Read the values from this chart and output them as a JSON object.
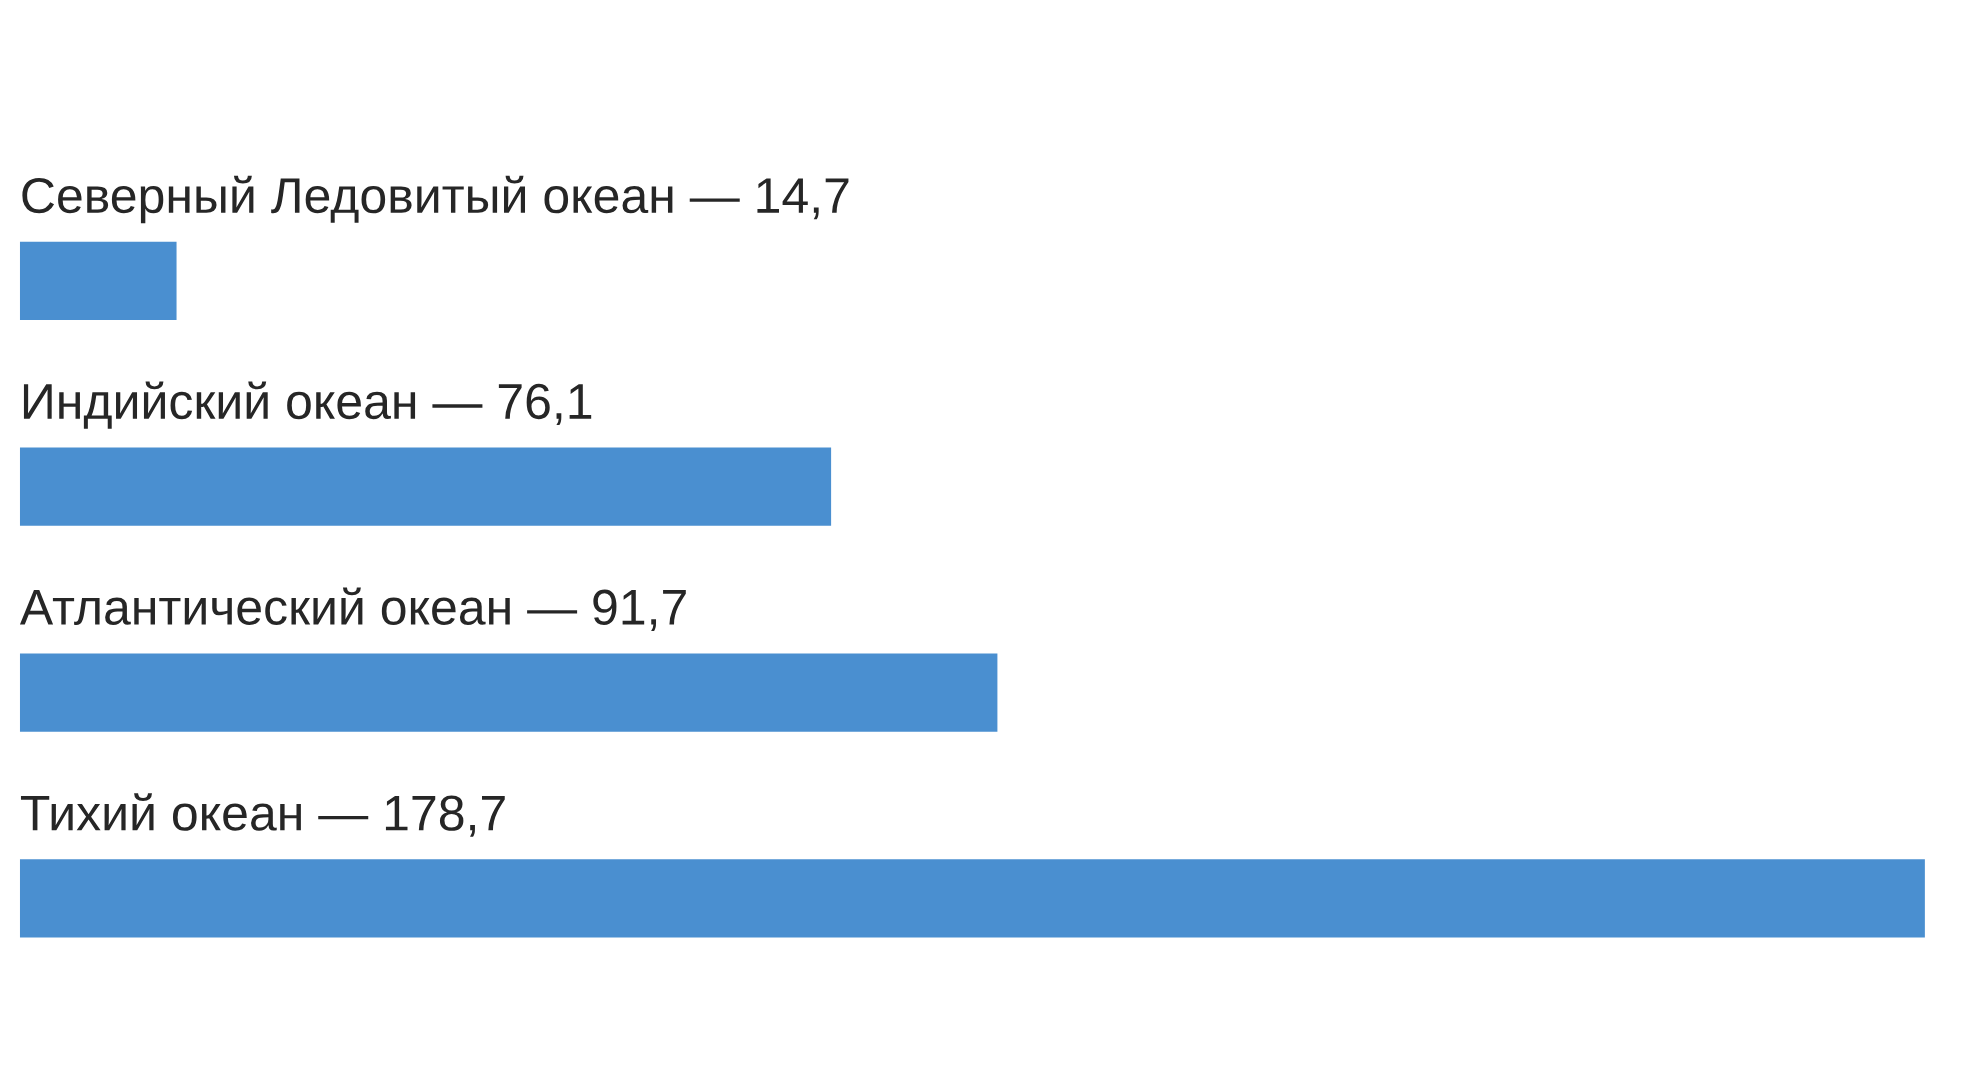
{
  "chart_data": {
    "type": "bar",
    "orientation": "horizontal",
    "categories": [
      null,
      null,
      null,
      null
    ],
    "values": [
      14.7,
      76.1,
      91.7,
      178.7
    ],
    "value_labels": [
      "Северный Ледовитый океан — 14,7",
      "Индийский океан — 76,1",
      "Атлантический океан — 91,7",
      "Тихий океан — 178,7"
    ],
    "color": "#4a8fd0",
    "legend": false
  }
}
